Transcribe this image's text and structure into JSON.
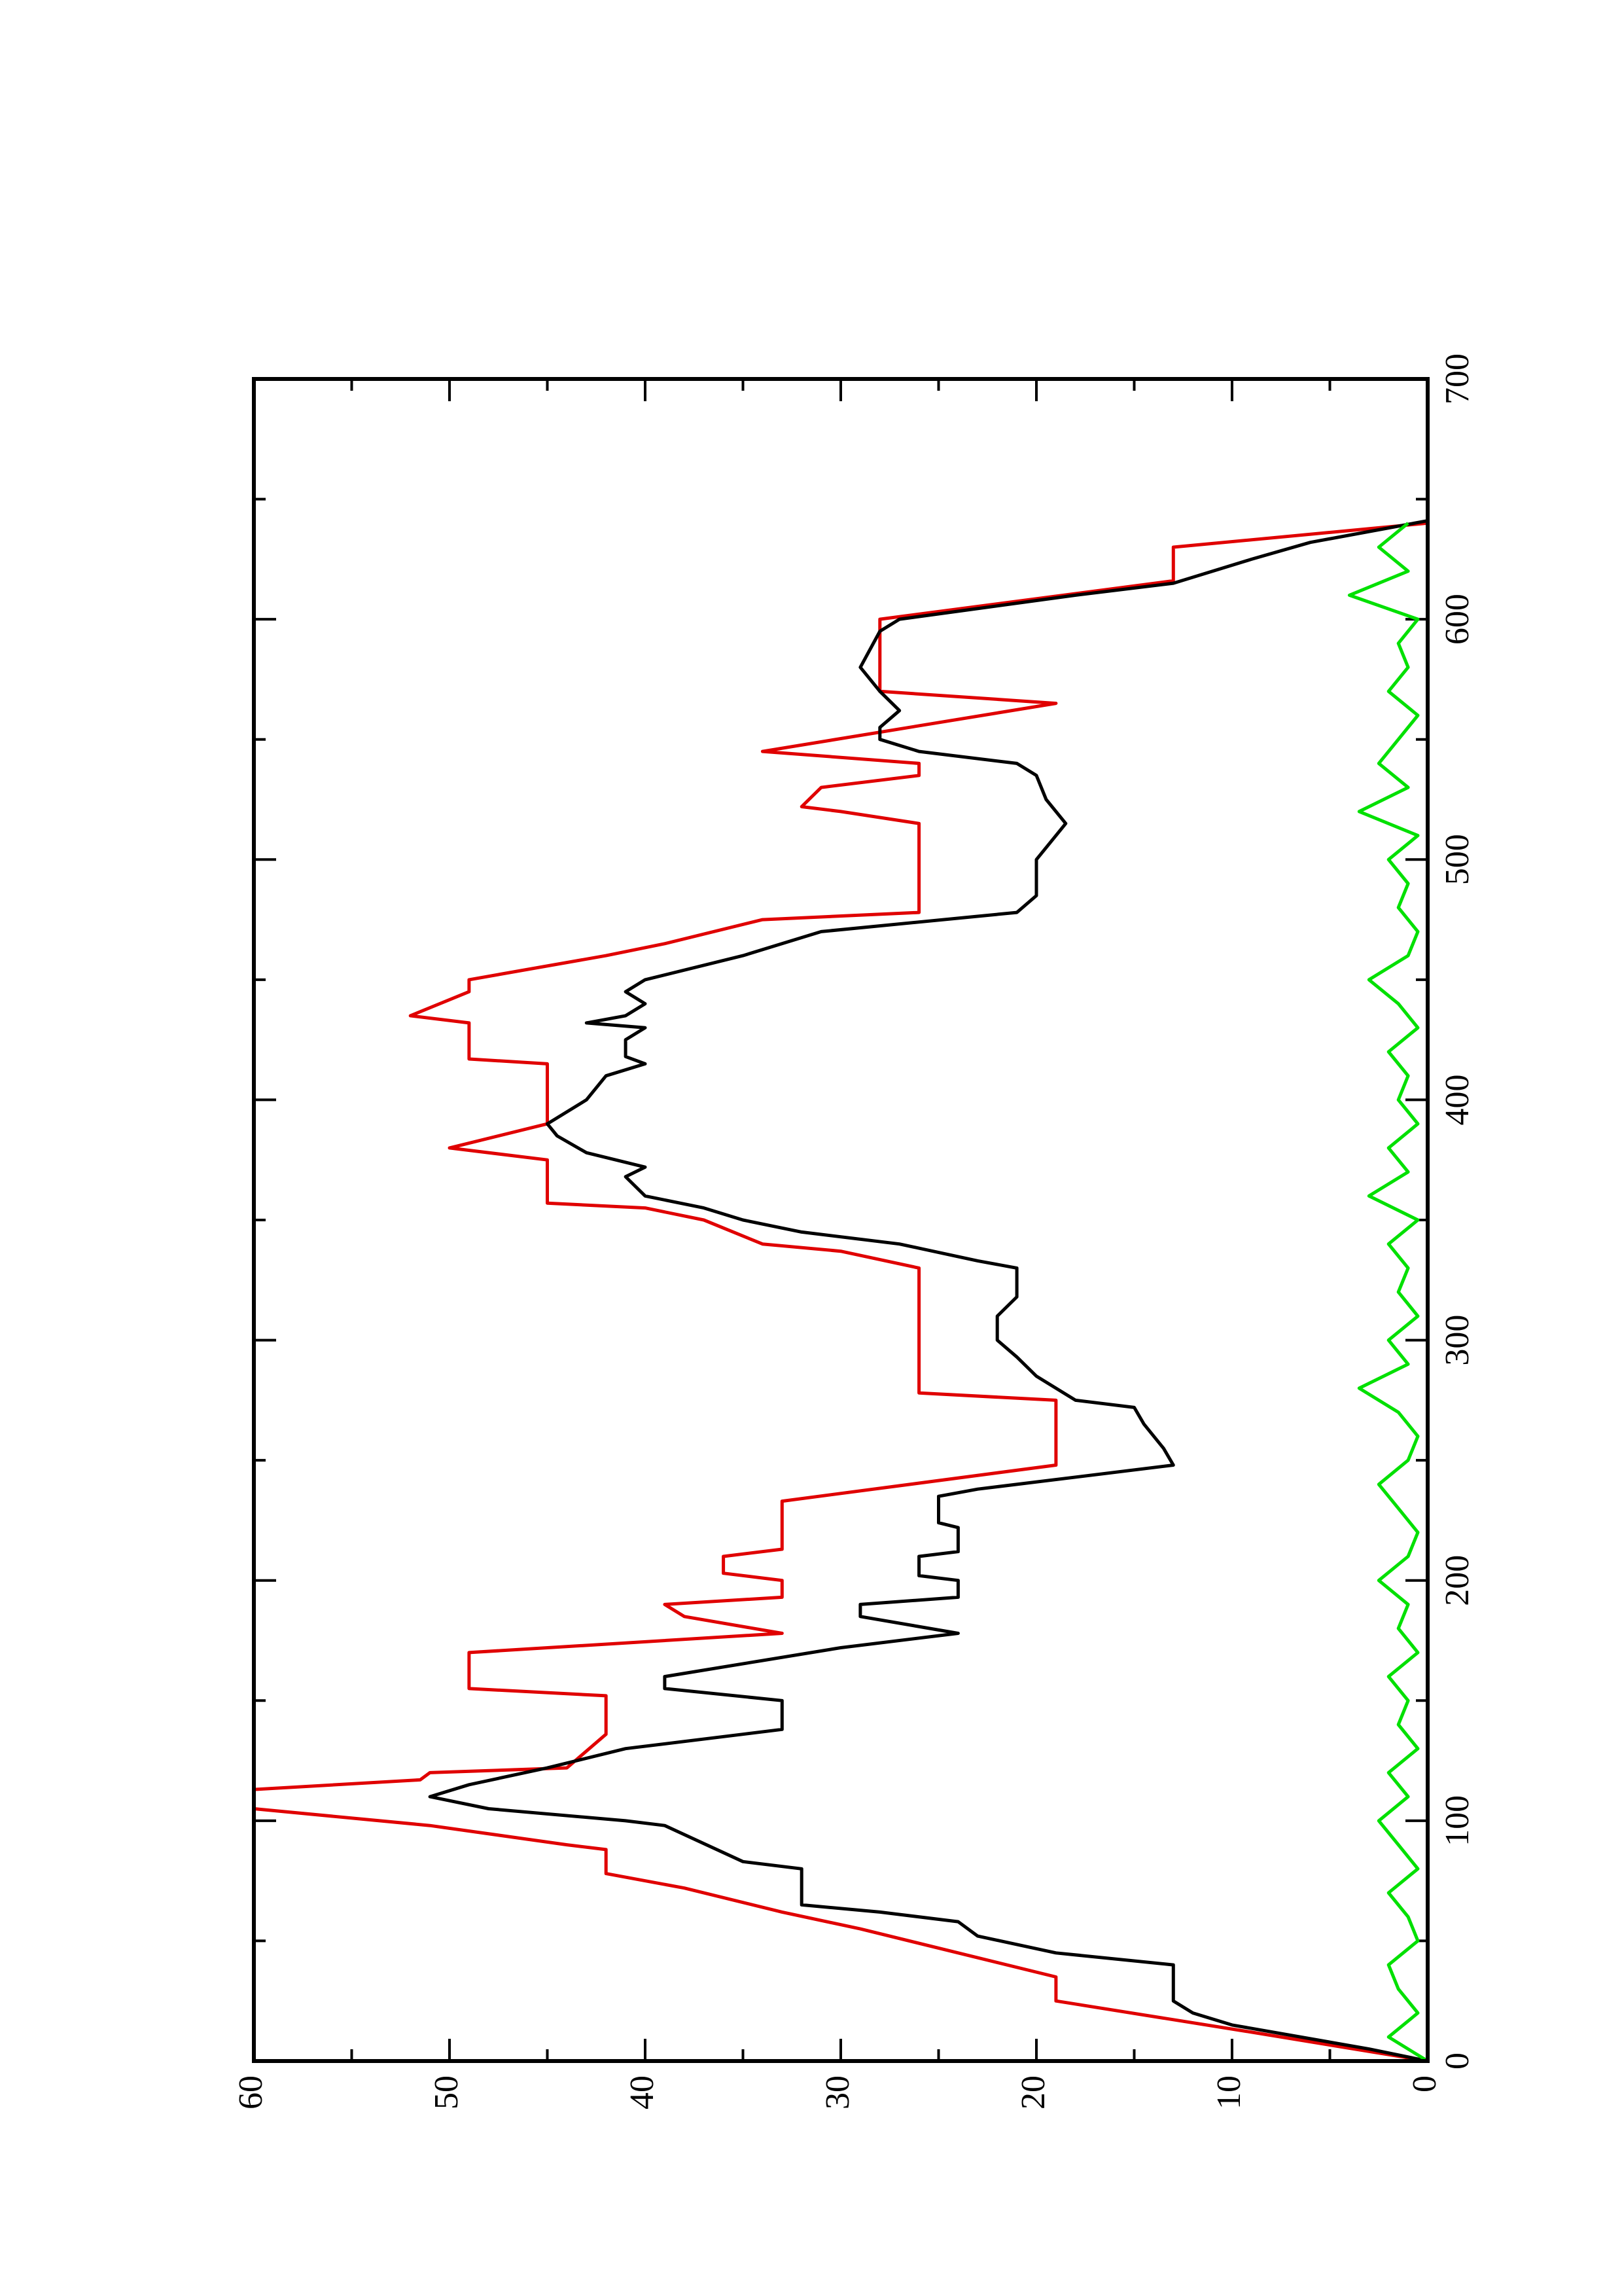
{
  "chart_data": {
    "type": "line",
    "xlim": [
      0,
      700
    ],
    "xticks": [
      0,
      100,
      200,
      300,
      400,
      500,
      600,
      700
    ],
    "xminorticks": [
      50,
      150,
      250,
      350,
      450,
      550,
      650
    ],
    "ylim": [
      0,
      60
    ],
    "yticks": [
      0,
      10,
      20,
      30,
      40,
      50,
      60
    ],
    "yminorticks": [
      5,
      15,
      25,
      35,
      45,
      55
    ],
    "series": [
      {
        "color": "#e00000",
        "x": [
          0,
          12,
          25,
          35,
          55,
          62,
          72,
          78,
          88,
          90,
          98,
          105,
          113,
          117,
          120,
          122,
          136,
          152,
          155,
          170,
          178,
          185,
          190,
          193,
          200,
          203,
          210,
          213,
          233,
          248,
          275,
          278,
          330,
          337,
          340,
          350,
          355,
          357,
          375,
          380,
          390,
          415,
          417,
          432,
          435,
          445,
          450,
          460,
          465,
          475,
          478,
          515,
          520,
          522,
          530,
          535,
          540,
          545,
          565,
          570,
          600,
          616,
          630,
          640
        ],
        "values": [
          0,
          9,
          19,
          19,
          29,
          33,
          38,
          42,
          42,
          44,
          51,
          60,
          60,
          51.5,
          51,
          44,
          42,
          42,
          49,
          49,
          33,
          38,
          39,
          33,
          33,
          36,
          36,
          33,
          33,
          19,
          19,
          26,
          26,
          30,
          34,
          37,
          40,
          45,
          45,
          50,
          45,
          45,
          49,
          49,
          52,
          49,
          49,
          42,
          39,
          34,
          26,
          26,
          30,
          32,
          31,
          26,
          26,
          34,
          19,
          28,
          28,
          13,
          13,
          0
        ]
      },
      {
        "color": "#000000",
        "x": [
          0,
          5,
          15,
          20,
          25,
          40,
          45,
          52,
          58,
          62,
          65,
          80,
          83,
          98,
          100,
          105,
          110,
          115,
          122,
          130,
          136,
          138,
          150,
          155,
          160,
          172,
          178,
          185,
          190,
          193,
          200,
          202,
          210,
          212,
          222,
          224,
          235,
          238,
          248,
          255,
          265,
          272,
          275,
          285,
          293,
          300,
          310,
          318,
          330,
          333,
          340,
          345,
          350,
          355,
          360,
          368,
          372,
          378,
          385,
          390,
          400,
          410,
          415,
          418,
          425,
          430,
          432,
          435,
          440,
          445,
          450,
          460,
          470,
          478,
          485,
          500,
          510,
          515,
          525,
          535,
          540,
          545,
          550,
          555,
          562,
          570,
          580,
          595,
          600,
          610,
          615,
          625,
          632,
          641
        ],
        "values": [
          0,
          3,
          10,
          12,
          13,
          13,
          19,
          23,
          24,
          28,
          32,
          32,
          35,
          39,
          41,
          48,
          51,
          49,
          45,
          41,
          35,
          33,
          33,
          39,
          39,
          30,
          24,
          29,
          29,
          24,
          24,
          26,
          26,
          24,
          24,
          25,
          25,
          23,
          13,
          13.5,
          14.5,
          15,
          18,
          20,
          21,
          22,
          22,
          21,
          21,
          23,
          27,
          32,
          35,
          37,
          40,
          41,
          40,
          43,
          44.5,
          45,
          43,
          42,
          40,
          41,
          41,
          40,
          43,
          41,
          40,
          41,
          40,
          35,
          31,
          21,
          20,
          20,
          19,
          18.5,
          19.5,
          20,
          21,
          26,
          28,
          28,
          27,
          28,
          29,
          28,
          27,
          18,
          13,
          9,
          6,
          0
        ]
      },
      {
        "color": "#00e000",
        "x": [
          0,
          10,
          20,
          30,
          40,
          50,
          60,
          70,
          80,
          90,
          100,
          110,
          120,
          130,
          140,
          150,
          160,
          170,
          180,
          190,
          200,
          210,
          220,
          230,
          240,
          250,
          260,
          270,
          280,
          290,
          300,
          310,
          320,
          330,
          340,
          350,
          360,
          370,
          380,
          390,
          400,
          410,
          420,
          430,
          440,
          450,
          460,
          470,
          480,
          490,
          500,
          510,
          520,
          530,
          540,
          550,
          560,
          570,
          580,
          590,
          600,
          610,
          620,
          630,
          640
        ],
        "values": [
          0,
          2,
          0.5,
          1.5,
          2,
          0.5,
          1,
          2,
          0.5,
          1.5,
          2.5,
          1,
          2,
          0.5,
          1.5,
          1,
          2,
          0.5,
          1.5,
          1,
          2.5,
          1,
          0.5,
          1.5,
          2.5,
          1,
          0.5,
          1.5,
          3.5,
          1,
          2,
          0.5,
          1.5,
          1,
          2,
          0.5,
          3,
          1,
          2,
          0.5,
          1.5,
          1,
          2,
          0.5,
          1.5,
          3,
          1,
          0.5,
          1.5,
          1,
          2,
          0.5,
          3.5,
          1,
          2.5,
          1.5,
          0.5,
          2,
          1,
          1.5,
          0.5,
          4,
          1,
          2.5,
          1
        ]
      }
    ]
  }
}
